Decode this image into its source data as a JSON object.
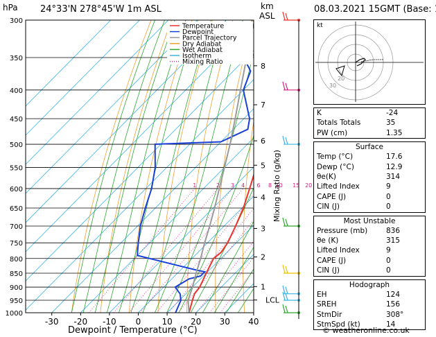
{
  "header": {
    "hpa": "hPa",
    "location": "24°33'N  278°45'W  1m  ASL",
    "km": "km",
    "asl": "ASL",
    "datetime": "08.03.2021  15GMT  (Base: 12)"
  },
  "chart_data": {
    "type": "line",
    "title": "24°33'N  278°45'W  1m  ASL",
    "xlabel": "Dewpoint / Temperature (°C)",
    "ylabel": "hPa",
    "y2label": "Mixing Ratio (g/kg)",
    "xlim": [
      -35,
      40
    ],
    "ylim": [
      1000,
      300
    ],
    "pressure_ticks": [
      300,
      350,
      400,
      450,
      500,
      550,
      600,
      650,
      700,
      750,
      800,
      850,
      900,
      950,
      1000
    ],
    "temp_ticks": [
      -30,
      -20,
      -10,
      0,
      10,
      20,
      30,
      40
    ],
    "km_ticks": [
      {
        "km": "8",
        "p": 362
      },
      {
        "km": "7",
        "p": 425
      },
      {
        "km": "6",
        "p": 493
      },
      {
        "km": "5",
        "p": 545
      },
      {
        "km": "4",
        "p": 622
      },
      {
        "km": "3",
        "p": 707
      },
      {
        "km": "2",
        "p": 795
      },
      {
        "km": "1",
        "p": 898
      }
    ],
    "lcl_label": "LCL",
    "lcl_p": 949,
    "mixing_ratio_labels": [
      "1",
      "2",
      "3",
      "4",
      "6",
      "8",
      "10",
      "15",
      "20",
      "25"
    ],
    "legend": [
      "Temperature",
      "Dewpoint",
      "Parcel Trajectory",
      "Dry Adiabat",
      "Wet Adiabat",
      "Isotherm",
      "Mixing Ratio"
    ],
    "legend_position": "top-right",
    "series": [
      {
        "name": "Temperature",
        "points": [
          [
            1000,
            17.6
          ],
          [
            950,
            14.5
          ],
          [
            925,
            13
          ],
          [
            900,
            12.5
          ],
          [
            850,
            10
          ],
          [
            800,
            7.5
          ],
          [
            780,
            8
          ],
          [
            750,
            7
          ],
          [
            700,
            4
          ],
          [
            650,
            0.5
          ],
          [
            600,
            -4
          ],
          [
            550,
            -9
          ],
          [
            500,
            -14
          ],
          [
            450,
            -19.5
          ],
          [
            400,
            -27
          ],
          [
            350,
            -35
          ],
          [
            300,
            -44
          ]
        ]
      },
      {
        "name": "Dewpoint",
        "points": [
          [
            1000,
            12.9
          ],
          [
            950,
            10.5
          ],
          [
            925,
            8
          ],
          [
            900,
            4
          ],
          [
            870,
            6
          ],
          [
            860,
            9
          ],
          [
            845,
            9
          ],
          [
            840,
            6
          ],
          [
            790,
            -20
          ],
          [
            750,
            -24
          ],
          [
            700,
            -29
          ],
          [
            650,
            -33.5
          ],
          [
            600,
            -38
          ],
          [
            550,
            -44
          ],
          [
            500,
            -52
          ],
          [
            495,
            -30
          ],
          [
            470,
            -25
          ],
          [
            450,
            -28
          ],
          [
            400,
            -40
          ],
          [
            370,
            -44
          ],
          [
            350,
            -51
          ],
          [
            300,
            -60
          ]
        ]
      },
      {
        "name": "Parcel Trajectory",
        "points": [
          [
            1000,
            17.6
          ],
          [
            950,
            13
          ],
          [
            900,
            10
          ],
          [
            850,
            6.5
          ],
          [
            800,
            3
          ],
          [
            750,
            -1
          ],
          [
            700,
            -5
          ],
          [
            650,
            -9.5
          ],
          [
            600,
            -14.5
          ],
          [
            550,
            -20
          ],
          [
            500,
            -26
          ],
          [
            450,
            -33
          ],
          [
            400,
            -41
          ],
          [
            350,
            -50
          ],
          [
            300,
            -61
          ]
        ]
      }
    ],
    "colors": {
      "temperature": "#e8332a",
      "dewpoint": "#1a3fd8",
      "parcel": "#9a9a9a",
      "dry_adiabat": "#f0a030",
      "wet_adiabat": "#2ca82c",
      "isotherm": "#3cb4e6",
      "mixing_ratio": "#d4207e"
    },
    "wind_barbs": [
      {
        "p": 300,
        "color": "#e8332a"
      },
      {
        "p": 400,
        "color": "#d4207e"
      },
      {
        "p": 500,
        "color": "#3cb4e6"
      },
      {
        "p": 700,
        "color": "#2ca82c"
      },
      {
        "p": 850,
        "color": "#f0c000"
      },
      {
        "p": 925,
        "color": "#3cb4e6"
      },
      {
        "p": 950,
        "color": "#3cb4e6"
      },
      {
        "p": 1000,
        "color": "#2ca82c"
      }
    ],
    "hodograph": {
      "label": "kt",
      "ring_labels": [
        "20",
        "30"
      ]
    }
  },
  "indices": {
    "rows": [
      {
        "label": "K",
        "value": "-24"
      },
      {
        "label": "Totals Totals",
        "value": "35"
      },
      {
        "label": "PW (cm)",
        "value": "1.35"
      }
    ]
  },
  "surface": {
    "title": "Surface",
    "rows": [
      {
        "label": "Temp (°C)",
        "value": "17.6"
      },
      {
        "label": "Dewp (°C)",
        "value": "12.9"
      },
      {
        "label": "θe(K)",
        "value": "314"
      },
      {
        "label": "Lifted Index",
        "value": "9"
      },
      {
        "label": "CAPE (J)",
        "value": "0"
      },
      {
        "label": "CIN (J)",
        "value": "0"
      }
    ]
  },
  "most_unstable": {
    "title": "Most Unstable",
    "rows": [
      {
        "label": "Pressure (mb)",
        "value": "836"
      },
      {
        "label": "θe (K)",
        "value": "315"
      },
      {
        "label": "Lifted Index",
        "value": "9"
      },
      {
        "label": "CAPE (J)",
        "value": "0"
      },
      {
        "label": "CIN (J)",
        "value": "0"
      }
    ]
  },
  "hodograph_box": {
    "title": "Hodograph",
    "rows": [
      {
        "label": "EH",
        "value": "124"
      },
      {
        "label": "SREH",
        "value": "156"
      },
      {
        "label": "StmDir",
        "value": "308°"
      },
      {
        "label": "StmSpd (kt)",
        "value": "14"
      }
    ]
  },
  "footer": {
    "copyright": "© weatheronline.co.uk"
  }
}
